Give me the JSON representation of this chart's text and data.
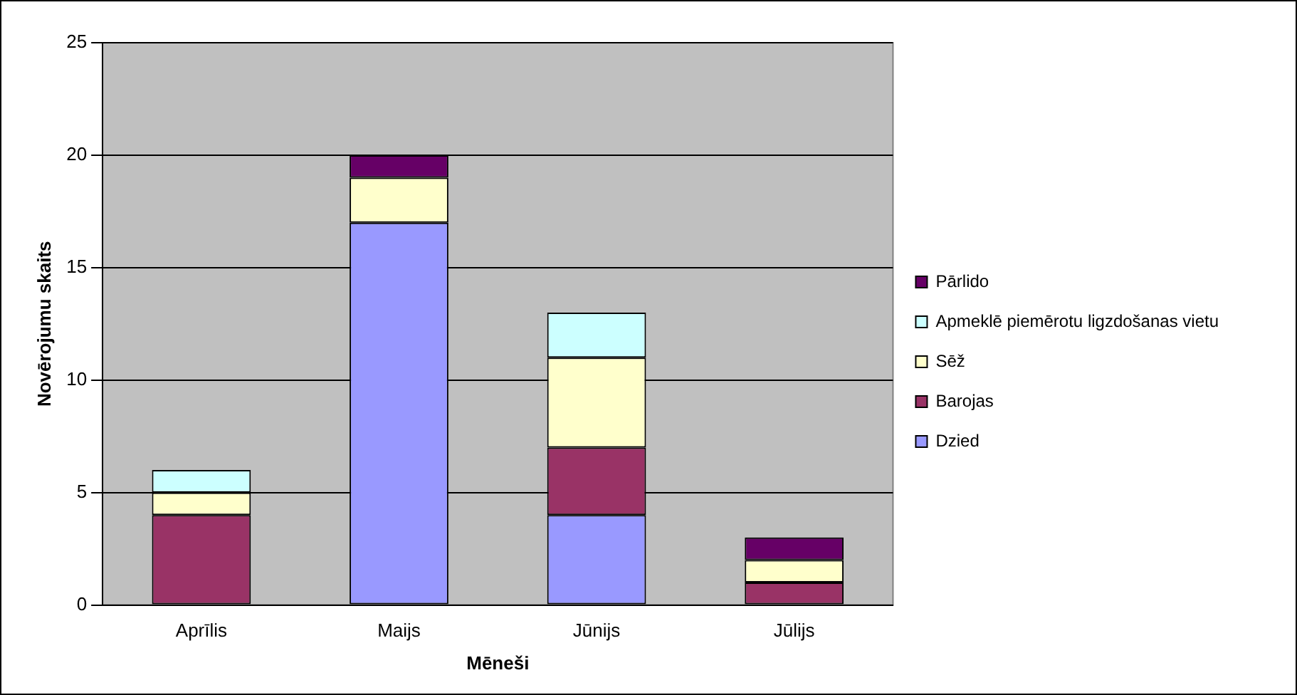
{
  "chart_data": {
    "type": "bar",
    "stacked": true,
    "xlabel": "Mēneši",
    "ylabel": "Novērojumu skaits",
    "categories": [
      "Aprīlis",
      "Maijs",
      "Jūnijs",
      "Jūlijs"
    ],
    "series": [
      {
        "name": "Dzied",
        "color": "#9999ff",
        "values": [
          0,
          17,
          4,
          0
        ]
      },
      {
        "name": "Barojas",
        "color": "#993366",
        "values": [
          4,
          0,
          3,
          1
        ]
      },
      {
        "name": "Sēž",
        "color": "#ffffcc",
        "values": [
          1,
          2,
          4,
          1
        ]
      },
      {
        "name": "Apmeklē piemērotu ligzdošanas vietu",
        "color": "#ccffff",
        "values": [
          1,
          0,
          2,
          0
        ]
      },
      {
        "name": "Pārlido",
        "color": "#660066",
        "values": [
          0,
          1,
          0,
          1
        ]
      }
    ],
    "ylim": [
      0,
      25
    ],
    "yticks": [
      0,
      5,
      10,
      15,
      20,
      25
    ],
    "grid": "y",
    "legend": "right"
  }
}
